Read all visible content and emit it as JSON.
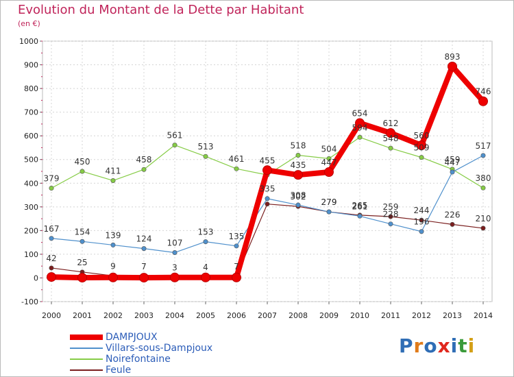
{
  "title": "Evolution du Montant de la Dette par Habitant",
  "subtitle": "(en €)",
  "logo": {
    "text": "Proxiti",
    "letter_colors": [
      "#2f6db5",
      "#e07b1a",
      "#2f6db5",
      "#e0281e",
      "#2f6db5",
      "#3a9a3a",
      "#d4a017"
    ]
  },
  "chart_data": {
    "type": "line",
    "title": "Evolution du Montant de la Dette par Habitant",
    "subtitle": "(en €)",
    "xlabel": "",
    "ylabel": "",
    "x": [
      "2000",
      "2001",
      "2002",
      "2003",
      "2004",
      "2005",
      "2006",
      "2007",
      "2008",
      "2009",
      "2010",
      "2011",
      "2012",
      "2013",
      "2014"
    ],
    "ylim": [
      -100,
      1000
    ],
    "yticks": [
      "-100",
      "0",
      "100",
      "200",
      "300",
      "400",
      "500",
      "600",
      "700",
      "800",
      "900",
      "1000"
    ],
    "grid": "horizontal dashed",
    "legend_position": "bottom-left",
    "series": [
      {
        "name": "Feule",
        "color": "#7a1e1e",
        "values": [
          42,
          25,
          9,
          7,
          3,
          4,
          7,
          312,
          302,
          279,
          265,
          259,
          244,
          226,
          210
        ],
        "labels": [
          "42",
          "25",
          "9",
          "7",
          "3",
          "4",
          "7",
          "",
          "302",
          "279",
          "265",
          "259",
          "244",
          "226",
          "210"
        ]
      },
      {
        "name": "Noirefontaine",
        "color": "#86cc46",
        "values": [
          379,
          450,
          411,
          458,
          561,
          513,
          461,
          435,
          518,
          504,
          594,
          548,
          509,
          459,
          380
        ],
        "labels": [
          "379",
          "450",
          "411",
          "458",
          "561",
          "513",
          "461",
          "",
          "518",
          "504",
          "594",
          "548",
          "509",
          "459",
          "380"
        ]
      },
      {
        "name": "Villars-sous-Dampjoux",
        "color": "#4f90cc",
        "values": [
          167,
          154,
          139,
          124,
          107,
          153,
          135,
          335,
          308,
          279,
          261,
          228,
          196,
          447,
          517
        ],
        "labels": [
          "167",
          "154",
          "139",
          "124",
          "107",
          "153",
          "135",
          "335",
          "308",
          "279",
          "261",
          "228",
          "196",
          "447",
          "517"
        ]
      },
      {
        "name": "DAMPJOUX",
        "color": "#ee0000",
        "values": [
          4,
          1,
          2,
          1,
          2,
          2,
          2,
          455,
          435,
          447,
          654,
          612,
          560,
          893,
          746
        ],
        "labels": [
          "",
          "",
          "",
          "",
          "",
          "",
          "",
          "455",
          "435",
          "447",
          "654",
          "612",
          "560",
          "893",
          "746"
        ]
      }
    ],
    "legend": [
      "DAMPJOUX",
      "Villars-sous-Dampjoux",
      "Noirefontaine",
      "Feule"
    ]
  }
}
